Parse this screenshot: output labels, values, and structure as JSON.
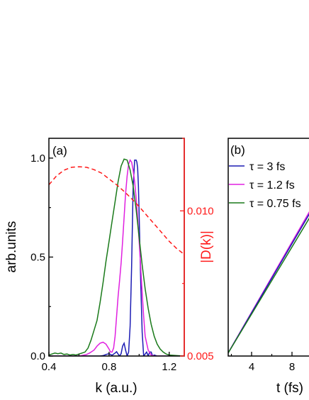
{
  "chart_data": [
    {
      "type": "line",
      "panel_label": "(a)",
      "xlabel": "k (a.u.)",
      "ylabel": "arb.units",
      "y2label": "|D(k)|",
      "xlim": [
        0.4,
        1.3
      ],
      "ylim": [
        0,
        1.1
      ],
      "y2lim": [
        0.005,
        0.0125
      ],
      "x_ticks": [
        "0.4",
        "0.8",
        "1.2"
      ],
      "x_tick_values": [
        0.4,
        0.8,
        1.2
      ],
      "y_ticks": [
        "0.0",
        "0.5",
        "1.0"
      ],
      "y_tick_values": [
        0,
        0.5,
        1.0
      ],
      "y2_ticks": [
        "0.005",
        "0.010"
      ],
      "y2_tick_values": [
        0.005,
        0.01
      ],
      "series": [
        {
          "color": "#1c1cb4",
          "axis": "left",
          "style": "solid",
          "x": [
            0.4,
            0.42,
            0.44,
            0.46,
            0.48,
            0.5,
            0.52,
            0.54,
            0.56,
            0.58,
            0.6,
            0.62,
            0.64,
            0.66,
            0.68,
            0.7,
            0.72,
            0.74,
            0.76,
            0.78,
            0.8,
            0.82,
            0.84,
            0.85,
            0.86,
            0.87,
            0.88,
            0.89,
            0.9,
            0.91,
            0.92,
            0.93,
            0.94,
            0.95,
            0.96,
            0.97,
            0.98,
            0.985,
            0.99,
            0.995,
            1.0,
            1.005,
            1.01,
            1.02,
            1.03,
            1.04,
            1.05,
            1.06,
            1.07,
            1.08,
            1.09,
            1.1,
            1.12,
            1.15,
            1.2,
            1.25,
            1.3
          ],
          "y": [
            0,
            0,
            0,
            0,
            0,
            0,
            0,
            0,
            0,
            0,
            0,
            0,
            0,
            0,
            0,
            0,
            0,
            0,
            0.002,
            0.008,
            0.012,
            0.004,
            0.015,
            0.022,
            0.01,
            0.0,
            0.012,
            0.05,
            0.065,
            0.03,
            0.0,
            0.02,
            0.15,
            0.45,
            0.85,
            0.99,
            0.99,
            0.98,
            0.95,
            0.86,
            0.72,
            0.55,
            0.38,
            0.12,
            0.0,
            0.01,
            0.02,
            0.0,
            0.02,
            0.02,
            0.0,
            0.005,
            0,
            0,
            0,
            0,
            0
          ]
        },
        {
          "color": "#e020e0",
          "axis": "left",
          "style": "solid",
          "x": [
            0.4,
            0.45,
            0.5,
            0.55,
            0.6,
            0.62,
            0.65,
            0.67,
            0.7,
            0.72,
            0.74,
            0.76,
            0.78,
            0.8,
            0.81,
            0.82,
            0.83,
            0.84,
            0.85,
            0.86,
            0.87,
            0.88,
            0.89,
            0.9,
            0.91,
            0.92,
            0.93,
            0.94,
            0.95,
            0.96,
            0.97,
            0.98,
            0.99,
            1.0,
            1.01,
            1.02,
            1.03,
            1.04,
            1.06,
            1.08,
            1.1,
            1.15,
            1.2,
            1.3
          ],
          "y": [
            0,
            0,
            0,
            0,
            0,
            0.003,
            0.008,
            0.015,
            0.03,
            0.05,
            0.065,
            0.07,
            0.06,
            0.035,
            0.02,
            0.02,
            0.04,
            0.1,
            0.2,
            0.3,
            0.38,
            0.47,
            0.58,
            0.7,
            0.82,
            0.91,
            0.97,
            0.99,
            0.98,
            0.94,
            0.88,
            0.8,
            0.7,
            0.58,
            0.45,
            0.32,
            0.2,
            0.1,
            0.03,
            0.005,
            0,
            0,
            0,
            0
          ]
        },
        {
          "color": "#1a7a1a",
          "axis": "left",
          "style": "solid",
          "x": [
            0.4,
            0.42,
            0.44,
            0.46,
            0.48,
            0.5,
            0.52,
            0.54,
            0.56,
            0.58,
            0.6,
            0.62,
            0.64,
            0.66,
            0.68,
            0.7,
            0.72,
            0.74,
            0.76,
            0.78,
            0.8,
            0.82,
            0.84,
            0.86,
            0.88,
            0.9,
            0.92,
            0.94,
            0.96,
            0.98,
            1.0,
            1.02,
            1.04,
            1.06,
            1.08,
            1.1,
            1.12,
            1.14,
            1.16,
            1.18,
            1.2,
            1.25,
            1.3
          ],
          "y": [
            0.005,
            0.01,
            0.015,
            0.012,
            0.015,
            0.008,
            0.01,
            0.005,
            0.008,
            0.005,
            0.01,
            0.015,
            0.02,
            0.04,
            0.08,
            0.13,
            0.18,
            0.27,
            0.37,
            0.48,
            0.58,
            0.68,
            0.78,
            0.88,
            0.96,
            0.995,
            0.99,
            0.94,
            0.86,
            0.74,
            0.6,
            0.46,
            0.34,
            0.24,
            0.16,
            0.1,
            0.06,
            0.035,
            0.02,
            0.01,
            0.005,
            0.002,
            0.0
          ]
        },
        {
          "color": "#ff1a1a",
          "axis": "right",
          "style": "dashed",
          "x": [
            0.4,
            0.45,
            0.5,
            0.55,
            0.6,
            0.65,
            0.7,
            0.75,
            0.8,
            0.85,
            0.9,
            0.95,
            1.0,
            1.05,
            1.1,
            1.15,
            1.2,
            1.25,
            1.3
          ],
          "y": [
            0.0109,
            0.0112,
            0.0114,
            0.0115,
            0.01152,
            0.0115,
            0.01142,
            0.0113,
            0.0111,
            0.0109,
            0.01067,
            0.01042,
            0.01015,
            0.00985,
            0.00955,
            0.00925,
            0.00895,
            0.0087,
            0.0085
          ]
        }
      ]
    },
    {
      "type": "line",
      "panel_label": "(b)",
      "xlabel": "t (fs)",
      "ylabel": "",
      "xlim": [
        1.5,
        10
      ],
      "ylim": [
        0,
        1
      ],
      "x_ticks": [
        "4",
        "8"
      ],
      "x_tick_values": [
        4,
        8
      ],
      "legend": {
        "placement": "top-left",
        "entries": [
          {
            "label": "τ = 3 fs",
            "color": "#1c1cb4"
          },
          {
            "label": "τ = 1.2 fs",
            "color": "#e020e0"
          },
          {
            "label": "τ = 0.75 fs",
            "color": "#1a7a1a"
          }
        ]
      },
      "series": [
        {
          "color": "#e020e0",
          "x": [
            1.5,
            10
          ],
          "y": [
            0,
            0.685
          ]
        },
        {
          "color": "#1c1cb4",
          "x": [
            1.5,
            10
          ],
          "y": [
            0,
            0.675
          ]
        },
        {
          "color": "#1a7a1a",
          "x": [
            1.5,
            10
          ],
          "y": [
            0,
            0.655
          ]
        }
      ]
    }
  ]
}
